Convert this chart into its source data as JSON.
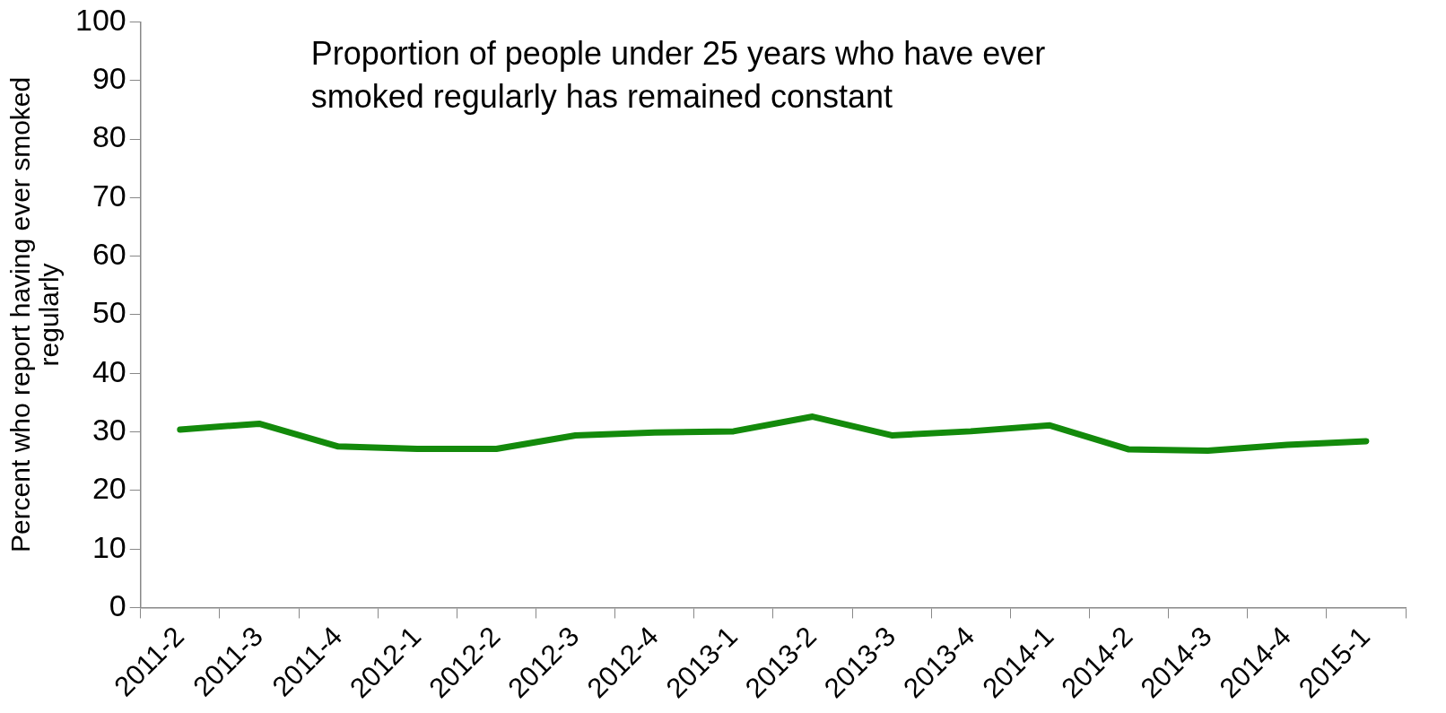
{
  "chart_data": {
    "type": "line",
    "ylabel": "Percent who report having ever smoked regularly",
    "annotations": [
      "Proportion of people under 25 years who have ever smoked regularly has remained constant"
    ],
    "categories": [
      "2011-2",
      "2011-3",
      "2011-4",
      "2012-1",
      "2012-2",
      "2012-3",
      "2012-4",
      "2013-1",
      "2013-2",
      "2013-3",
      "2013-4",
      "2014-1",
      "2014-2",
      "2014-3",
      "2014-4",
      "2015-1"
    ],
    "series": [
      {
        "color": "#138a0b",
        "values": [
          30.4,
          31.4,
          27.5,
          27.1,
          27.1,
          29.4,
          29.9,
          30.1,
          32.6,
          29.4,
          30.1,
          31.1,
          27.0,
          26.8,
          27.8,
          28.4
        ]
      }
    ],
    "ylim": [
      0,
      100
    ],
    "yticks": [
      0,
      10,
      20,
      30,
      40,
      50,
      60,
      70,
      80,
      90,
      100
    ],
    "grid": false,
    "legend": false,
    "marker": "none",
    "line_style": "solid"
  }
}
